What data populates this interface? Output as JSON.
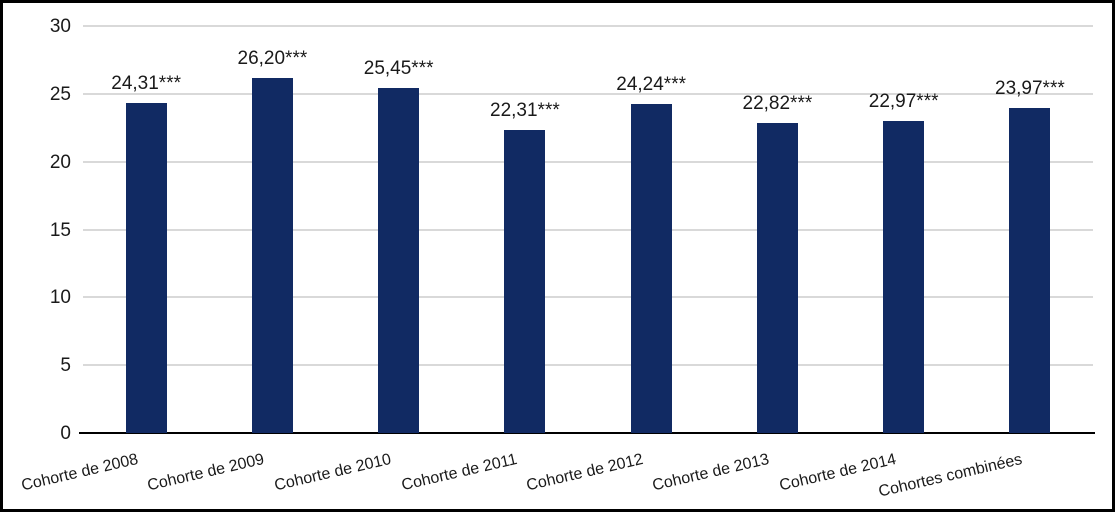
{
  "chart_data": {
    "type": "bar",
    "title": "",
    "xlabel": "",
    "ylabel": "",
    "categories": [
      "Cohorte de 2008",
      "Cohorte de 2009",
      "Cohorte de 2010",
      "Cohorte de 2011",
      "Cohorte de 2012",
      "Cohorte de 2013",
      "Cohorte de 2014",
      "Cohortes combinées"
    ],
    "values": [
      24.31,
      26.2,
      25.45,
      22.31,
      24.24,
      22.82,
      22.97,
      23.97
    ],
    "value_labels": [
      "24,31***",
      "26,20***",
      "25,45***",
      "22,31***",
      "24,24***",
      "22,82***",
      "22,97***",
      "23,97***"
    ],
    "yticks": [
      0,
      5,
      10,
      15,
      20,
      25,
      30
    ],
    "ylim": [
      0,
      30
    ],
    "grid": true,
    "legend": "none",
    "colors": {
      "bar": "#112A63",
      "gridline": "#D9D9D9",
      "axis_line": "#000000",
      "text": "#1A1A1A"
    }
  }
}
